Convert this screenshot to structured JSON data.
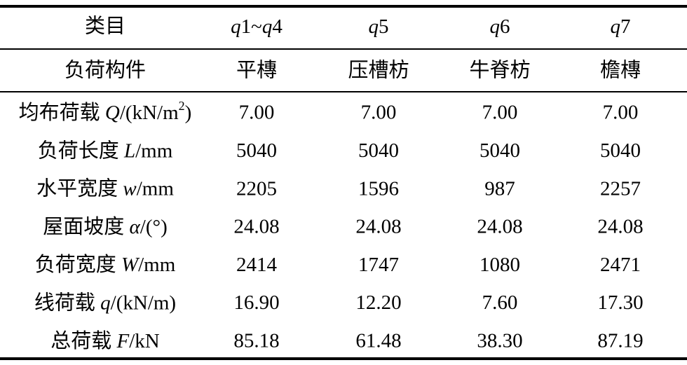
{
  "table": {
    "header": [
      "类目",
      [
        {
          "text": "q",
          "style": "italic"
        },
        {
          "text": "1~"
        },
        {
          "text": "q",
          "style": "italic"
        },
        {
          "text": "4"
        }
      ],
      [
        {
          "text": "q",
          "style": "italic"
        },
        {
          "text": "5"
        }
      ],
      [
        {
          "text": "q",
          "style": "italic"
        },
        {
          "text": "6"
        }
      ],
      [
        {
          "text": "q",
          "style": "italic"
        },
        {
          "text": "7"
        }
      ]
    ],
    "rows": [
      [
        "负荷构件",
        "平槫",
        "压槽枋",
        "牛脊枋",
        "檐槫"
      ],
      [
        [
          {
            "text": "均布荷载 "
          },
          {
            "text": "Q",
            "style": "italic"
          },
          {
            "text": "/(kN/m"
          },
          {
            "text": "2",
            "style": "sup"
          },
          {
            "text": ")"
          }
        ],
        "7.00",
        "7.00",
        "7.00",
        "7.00"
      ],
      [
        [
          {
            "text": "负荷长度 "
          },
          {
            "text": "L",
            "style": "italic"
          },
          {
            "text": "/mm"
          }
        ],
        "5040",
        "5040",
        "5040",
        "5040"
      ],
      [
        [
          {
            "text": "水平宽度 "
          },
          {
            "text": "w",
            "style": "italic"
          },
          {
            "text": "/mm"
          }
        ],
        "2205",
        "1596",
        "987",
        "2257"
      ],
      [
        [
          {
            "text": "屋面坡度 "
          },
          {
            "text": "α",
            "style": "italic"
          },
          {
            "text": "/(°)"
          }
        ],
        "24.08",
        "24.08",
        "24.08",
        "24.08"
      ],
      [
        [
          {
            "text": "负荷宽度 "
          },
          {
            "text": "W",
            "style": "italic"
          },
          {
            "text": "/mm"
          }
        ],
        "2414",
        "1747",
        "1080",
        "2471"
      ],
      [
        [
          {
            "text": "线荷载 "
          },
          {
            "text": "q",
            "style": "italic"
          },
          {
            "text": "/(kN/m)"
          }
        ],
        "16.90",
        "12.20",
        "7.60",
        "17.30"
      ],
      [
        [
          {
            "text": "总荷载 "
          },
          {
            "text": "F",
            "style": "italic"
          },
          {
            "text": "/kN"
          }
        ],
        "85.18",
        "61.48",
        "38.30",
        "87.19"
      ]
    ]
  }
}
